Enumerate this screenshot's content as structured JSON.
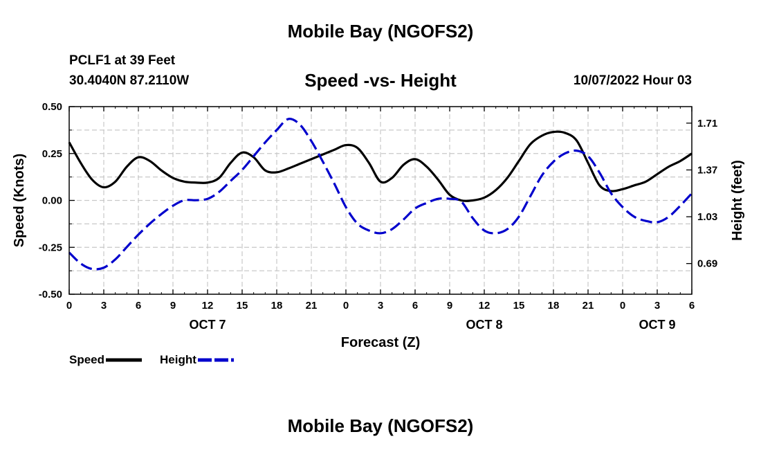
{
  "header": {
    "title": "Mobile Bay (NGOFS2)",
    "station": "PCLF1 at 39 Feet",
    "coords": "30.4040N  87.2110W",
    "subtitle": "Speed -vs- Height",
    "datestamp": "10/07/2022 Hour 03"
  },
  "footer": {
    "title": "Mobile Bay (NGOFS2)"
  },
  "chart_data": {
    "type": "line",
    "xlabel": "Forecast (Z)",
    "ylabel": "Speed (Knots)",
    "y2label": "Height (feet)",
    "xlim": [
      0,
      54
    ],
    "ylim": [
      -0.5,
      0.5
    ],
    "y2lim": [
      0.467,
      1.83
    ],
    "x_ticks": [
      0,
      3,
      6,
      9,
      12,
      15,
      18,
      21,
      24,
      27,
      30,
      33,
      36,
      39,
      42,
      45,
      48,
      51,
      54
    ],
    "x_tick_labels": [
      "0",
      "3",
      "6",
      "9",
      "12",
      "15",
      "18",
      "21",
      "0",
      "3",
      "6",
      "9",
      "12",
      "15",
      "18",
      "21",
      "0",
      "3",
      "6"
    ],
    "day_labels": [
      {
        "x": 12,
        "label": "OCT 7"
      },
      {
        "x": 36,
        "label": "OCT 8"
      },
      {
        "x": 51,
        "label": "OCT 9"
      }
    ],
    "y_ticks": [
      -0.5,
      -0.25,
      0.0,
      0.25,
      0.5
    ],
    "y_tick_labels": [
      "-0.50",
      "-0.25",
      "0.00",
      "0.25",
      "0.50"
    ],
    "y2_ticks": [
      0.69,
      1.03,
      1.37,
      1.71
    ],
    "y2_tick_labels": [
      "0.69",
      "1.03",
      "1.37",
      "1.71"
    ],
    "grid": true,
    "series": [
      {
        "name": "Speed",
        "axis": "left",
        "color": "#000000",
        "style": "solid",
        "x": [
          0,
          1,
          2,
          3,
          4,
          5,
          6,
          7,
          8,
          9,
          10,
          11,
          12,
          13,
          14,
          15,
          16,
          17,
          18,
          19,
          20,
          21,
          22,
          23,
          24,
          25,
          26,
          27,
          28,
          29,
          30,
          31,
          32,
          33,
          34,
          35,
          36,
          37,
          38,
          39,
          40,
          41,
          42,
          43,
          44,
          45,
          46,
          47,
          48,
          49,
          50,
          51,
          52,
          53,
          54
        ],
        "values": [
          0.31,
          0.2,
          0.11,
          0.07,
          0.1,
          0.18,
          0.23,
          0.21,
          0.16,
          0.12,
          0.1,
          0.095,
          0.095,
          0.12,
          0.2,
          0.255,
          0.23,
          0.16,
          0.15,
          0.17,
          0.195,
          0.22,
          0.245,
          0.27,
          0.295,
          0.28,
          0.2,
          0.1,
          0.12,
          0.19,
          0.22,
          0.18,
          0.11,
          0.03,
          0.0,
          0.0,
          0.015,
          0.055,
          0.12,
          0.21,
          0.3,
          0.345,
          0.365,
          0.36,
          0.32,
          0.2,
          0.08,
          0.05,
          0.06,
          0.08,
          0.1,
          0.14,
          0.18,
          0.21,
          0.25
        ]
      },
      {
        "name": "Height",
        "axis": "right",
        "color": "#0000cc",
        "style": "dashed",
        "x": [
          0,
          1,
          2,
          3,
          4,
          5,
          6,
          7,
          8,
          9,
          10,
          11,
          12,
          13,
          14,
          15,
          16,
          17,
          18,
          19,
          20,
          21,
          22,
          23,
          24,
          25,
          26,
          27,
          28,
          29,
          30,
          31,
          32,
          33,
          34,
          35,
          36,
          37,
          38,
          39,
          40,
          41,
          42,
          43,
          44,
          45,
          46,
          47,
          48,
          49,
          50,
          51,
          52,
          53,
          54
        ],
        "values": [
          0.77,
          0.69,
          0.65,
          0.66,
          0.72,
          0.81,
          0.9,
          0.98,
          1.05,
          1.11,
          1.15,
          1.15,
          1.16,
          1.21,
          1.29,
          1.37,
          1.47,
          1.57,
          1.66,
          1.74,
          1.7,
          1.58,
          1.43,
          1.27,
          1.1,
          0.98,
          0.93,
          0.91,
          0.94,
          1.01,
          1.09,
          1.13,
          1.16,
          1.16,
          1.14,
          1.02,
          0.93,
          0.91,
          0.94,
          1.03,
          1.18,
          1.33,
          1.43,
          1.49,
          1.51,
          1.47,
          1.35,
          1.2,
          1.1,
          1.03,
          1.0,
          0.99,
          1.03,
          1.11,
          1.2
        ]
      }
    ],
    "legend": {
      "placement": "bottom-left",
      "entries": [
        "Speed",
        "Height"
      ]
    }
  }
}
